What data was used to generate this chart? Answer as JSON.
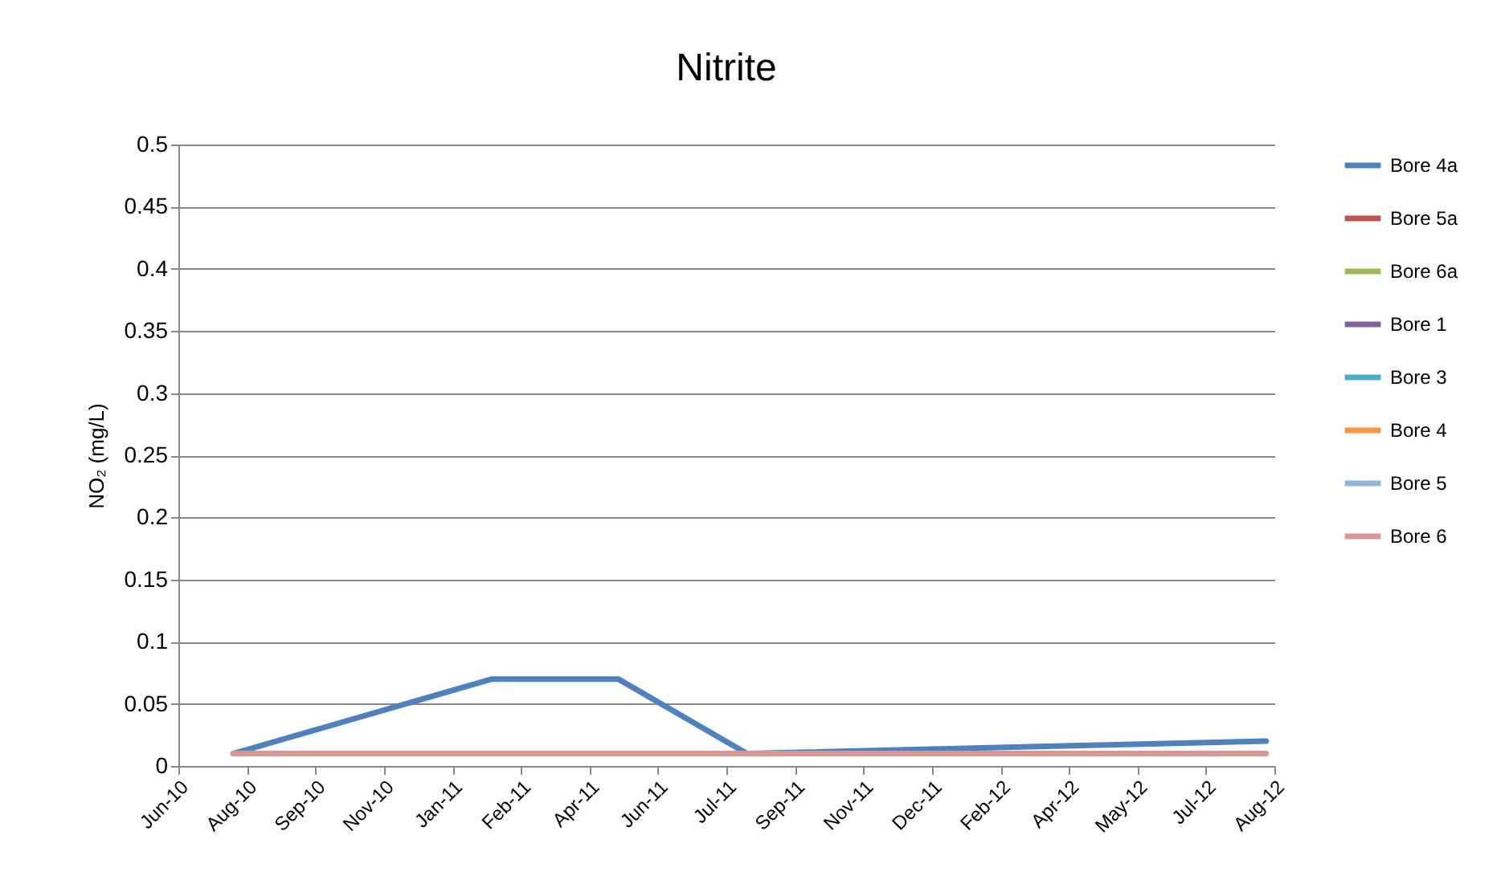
{
  "chart_data": {
    "type": "line",
    "title": "Nitrite",
    "ylabel": "NO₂ (mg/L)",
    "x": [
      "2010-08-01",
      "2011-02-06",
      "2011-05-09",
      "2011-08-11",
      "2012-08-24"
    ],
    "series": [
      {
        "name": "Bore 4a",
        "color": "#4f81bd",
        "values": [
          0.01,
          0.07,
          0.07,
          0.01,
          0.02
        ]
      },
      {
        "name": "Bore 5a",
        "color": "#c0504d",
        "values": [
          null,
          null,
          null,
          null,
          null
        ]
      },
      {
        "name": "Bore 6a",
        "color": "#9bbb59",
        "values": [
          null,
          null,
          null,
          null,
          null
        ]
      },
      {
        "name": "Bore 1",
        "color": "#8064a2",
        "values": [
          null,
          null,
          null,
          null,
          null
        ]
      },
      {
        "name": "Bore 3",
        "color": "#4bacc6",
        "values": [
          null,
          null,
          null,
          null,
          null
        ]
      },
      {
        "name": "Bore 4",
        "color": "#f79646",
        "values": [
          null,
          null,
          null,
          null,
          null
        ]
      },
      {
        "name": "Bore 5",
        "color": "#95b3d7",
        "values": [
          null,
          null,
          null,
          null,
          null
        ]
      },
      {
        "name": "Bore 6",
        "color": "#d99694",
        "values": [
          0.01,
          0.01,
          0.01,
          0.01,
          0.01
        ]
      }
    ],
    "xlim": [
      "2010-06-22",
      "2012-08-30"
    ],
    "xticks": [
      {
        "value": "2010-06-22",
        "label": "Jun-10"
      },
      {
        "value": "2010-08-11",
        "label": "Aug-10"
      },
      {
        "value": "2010-09-30",
        "label": "Sep-10"
      },
      {
        "value": "2010-11-19",
        "label": "Nov-10"
      },
      {
        "value": "2011-01-08",
        "label": "Jan-11"
      },
      {
        "value": "2011-02-27",
        "label": "Feb-11"
      },
      {
        "value": "2011-04-18",
        "label": "Apr-11"
      },
      {
        "value": "2011-06-07",
        "label": "Jun-11"
      },
      {
        "value": "2011-07-27",
        "label": "Jul-11"
      },
      {
        "value": "2011-09-15",
        "label": "Sep-11"
      },
      {
        "value": "2011-11-04",
        "label": "Nov-11"
      },
      {
        "value": "2011-12-24",
        "label": "Dec-11"
      },
      {
        "value": "2012-02-12",
        "label": "Feb-12"
      },
      {
        "value": "2012-04-02",
        "label": "Apr-12"
      },
      {
        "value": "2012-05-22",
        "label": "May-12"
      },
      {
        "value": "2012-07-11",
        "label": "Jul-12"
      },
      {
        "value": "2012-08-30",
        "label": "Aug-12"
      }
    ],
    "ylim": [
      0,
      0.5
    ],
    "yticks": [
      0,
      0.05,
      0.1,
      0.15,
      0.2,
      0.25,
      0.3,
      0.35,
      0.4,
      0.45,
      0.5
    ],
    "grid": "y",
    "legend": "right",
    "marker": "none",
    "line_style": "solid"
  }
}
